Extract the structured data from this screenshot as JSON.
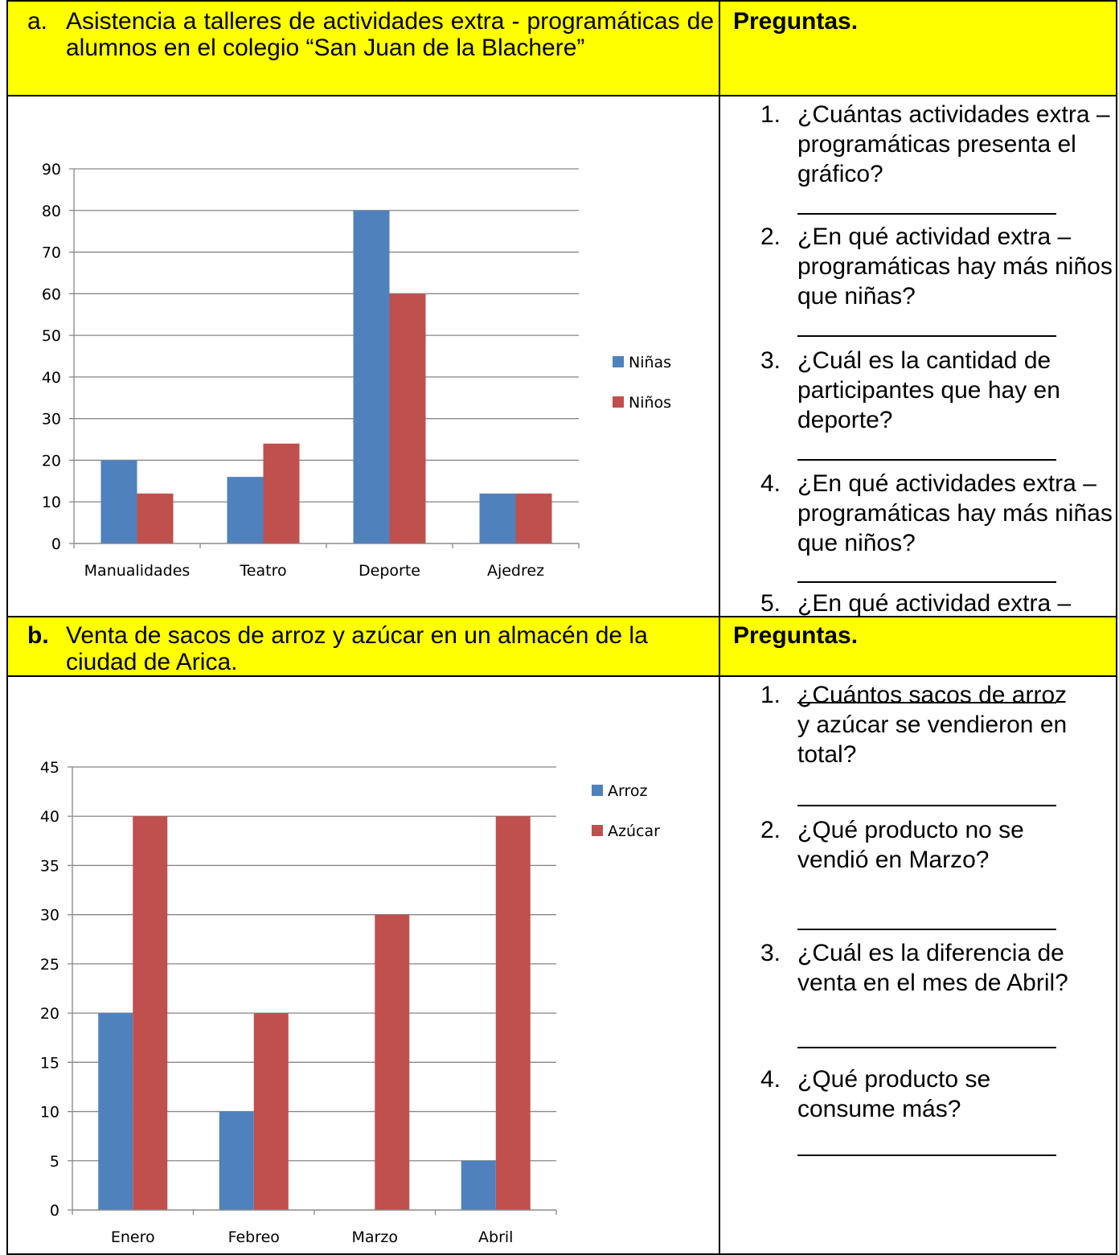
{
  "section_a": {
    "marker": "a.",
    "title": "Asistencia a talleres de actividades extra - programáticas de alumnos en el colegio “San Juan de la Blachere”",
    "questions_header": "Preguntas.",
    "questions": [
      {
        "num": "1.",
        "text": "¿Cuántas actividades extra – programáticas presenta el gráfico?"
      },
      {
        "num": "2.",
        "text": "¿En qué actividad extra – programáticas hay más niños que niñas?"
      },
      {
        "num": "3.",
        "text": "¿Cuál es la cantidad de participantes que hay en deporte?"
      },
      {
        "num": "4.",
        "text": "¿En qué actividades extra – programáticas hay más niñas que niños?"
      },
      {
        "num": "5.",
        "text": "¿En qué actividad extra – programáticas están igual cantidad de niños niñas?"
      }
    ]
  },
  "section_b": {
    "marker": "b.",
    "title": "Venta de sacos de arroz y azúcar en un almacén de la ciudad de Arica.",
    "questions_header": "Preguntas.",
    "questions": [
      {
        "num": "1.",
        "text": "¿Cuántos sacos de arroz y azúcar se vendieron en total?"
      },
      {
        "num": "2.",
        "text": "¿Qué producto no se vendió en Marzo?"
      },
      {
        "num": "3.",
        "text": "¿Cuál es la diferencia de venta en el mes de Abril?"
      },
      {
        "num": "4.",
        "text": "¿Qué producto se consume más?"
      }
    ]
  },
  "colors": {
    "header_bg": "#ffff00",
    "series_1": "#4f81bd",
    "series_2": "#c0504d",
    "grid": "#868686"
  },
  "chart_data": [
    {
      "type": "bar",
      "categories": [
        "Manualidades",
        "Teatro",
        "Deporte",
        "Ajedrez"
      ],
      "series": [
        {
          "name": "Niñas",
          "values": [
            20,
            16,
            80,
            12
          ]
        },
        {
          "name": "Niños",
          "values": [
            12,
            24,
            60,
            12
          ]
        }
      ],
      "yticks": [
        "0",
        "10",
        "20",
        "30",
        "40",
        "50",
        "60",
        "70",
        "80",
        "90"
      ],
      "ylim": [
        0,
        90
      ],
      "grid": true,
      "legend": "right"
    },
    {
      "type": "bar",
      "categories": [
        "Enero",
        "Febreo",
        "Marzo",
        "Abril"
      ],
      "series": [
        {
          "name": "Arroz",
          "values": [
            20,
            10,
            0,
            5
          ]
        },
        {
          "name": "Azúcar",
          "values": [
            40,
            20,
            30,
            40
          ]
        }
      ],
      "yticks": [
        "0",
        "5",
        "10",
        "15",
        "20",
        "25",
        "30",
        "35",
        "40",
        "45"
      ],
      "ylim": [
        0,
        45
      ],
      "grid": true,
      "legend": "right"
    }
  ]
}
